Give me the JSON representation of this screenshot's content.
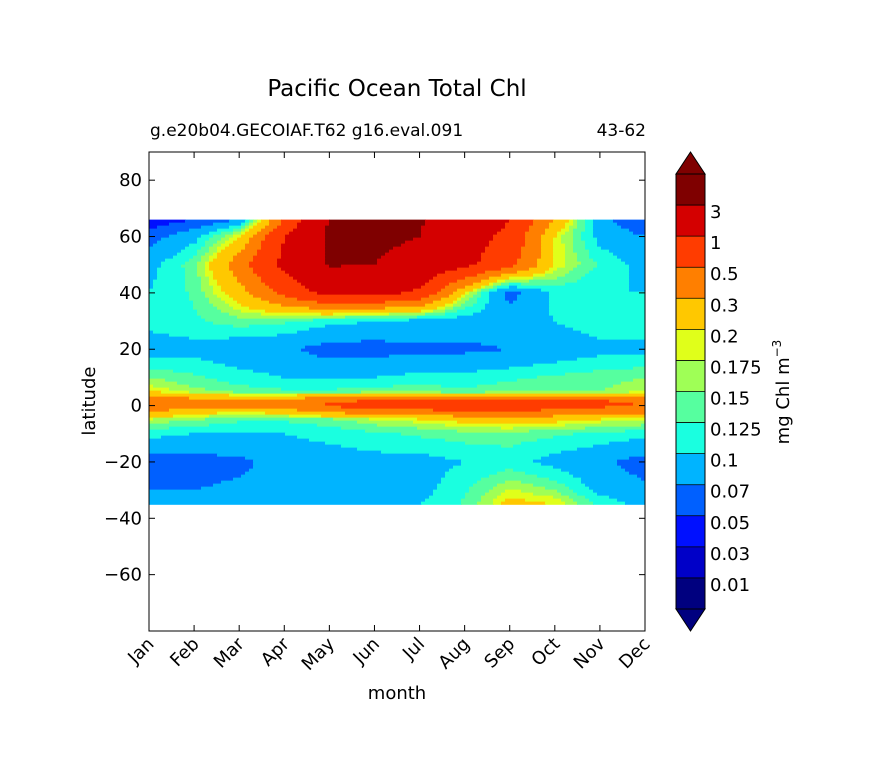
{
  "chart_data": {
    "type": "contourf",
    "title": "Pacific Ocean Total Chl",
    "subtitle_left": "g.e20b04.GECOIAF.T62 g16.eval.091",
    "subtitle_right": "43-62",
    "xlabel": "month",
    "ylabel": "latitude",
    "x_ticklabels": [
      "Jan",
      "Feb",
      "Mar",
      "Apr",
      "May",
      "Jun",
      "Jul",
      "Aug",
      "Sep",
      "Oct",
      "Nov",
      "Dec"
    ],
    "y_ticks": [
      80,
      60,
      40,
      20,
      0,
      -20,
      -40,
      -60
    ],
    "y_ticklabels": [
      "80",
      "60",
      "40",
      "20",
      "0",
      "−20",
      "−40",
      "−60"
    ],
    "ylim": [
      -80,
      90
    ],
    "xlim": [
      0,
      11
    ],
    "data_lat_range": [
      -35,
      66
    ],
    "colorbar": {
      "label": "mg Chl m",
      "label_exponent": "−3",
      "extend": "both",
      "levels": [
        "0.01",
        "0.03",
        "0.05",
        "0.07",
        "0.1",
        "0.125",
        "0.15",
        "0.175",
        "0.2",
        "0.3",
        "0.5",
        "1",
        "3"
      ],
      "colors": [
        "#00007f",
        "#0000c8",
        "#0010ff",
        "#0060ff",
        "#00b4ff",
        "#1affe0",
        "#56ff9f",
        "#9fff56",
        "#e0ff1a",
        "#ffc800",
        "#ff7f00",
        "#ff3c00",
        "#d40000",
        "#7f0000"
      ],
      "under_color": "#00007f",
      "over_color": "#7f0000"
    },
    "field_lat": [
      66,
      60,
      50,
      40,
      30,
      20,
      10,
      5,
      2,
      0,
      -2,
      -5,
      -10,
      -20,
      -30,
      -35
    ],
    "field_values": [
      [
        0.04,
        0.05,
        0.07,
        0.5,
        3.2,
        3.5,
        3.2,
        2.0,
        1.0,
        0.3,
        0.08,
        0.05
      ],
      [
        0.06,
        0.09,
        0.2,
        1.0,
        3.5,
        4.0,
        3.0,
        1.5,
        0.8,
        0.2,
        0.09,
        0.07
      ],
      [
        0.09,
        0.14,
        0.4,
        1.2,
        3.2,
        3.0,
        1.8,
        1.2,
        0.6,
        0.2,
        0.12,
        0.09
      ],
      [
        0.1,
        0.13,
        0.25,
        0.6,
        1.3,
        1.2,
        0.9,
        0.2,
        0.06,
        0.11,
        0.1,
        0.1
      ],
      [
        0.11,
        0.12,
        0.14,
        0.13,
        0.11,
        0.1,
        0.09,
        0.085,
        0.09,
        0.1,
        0.12,
        0.12
      ],
      [
        0.085,
        0.09,
        0.08,
        0.075,
        0.06,
        0.06,
        0.065,
        0.065,
        0.07,
        0.08,
        0.09,
        0.09
      ],
      [
        0.15,
        0.13,
        0.11,
        0.1,
        0.095,
        0.1,
        0.11,
        0.11,
        0.12,
        0.13,
        0.14,
        0.15
      ],
      [
        0.2,
        0.16,
        0.14,
        0.13,
        0.13,
        0.14,
        0.14,
        0.13,
        0.14,
        0.14,
        0.15,
        0.17
      ],
      [
        0.4,
        0.35,
        0.3,
        0.32,
        0.45,
        0.5,
        0.55,
        0.6,
        0.6,
        0.55,
        0.5,
        0.45
      ],
      [
        0.45,
        0.4,
        0.35,
        0.4,
        0.55,
        0.6,
        0.65,
        0.7,
        0.7,
        0.65,
        0.55,
        0.5
      ],
      [
        0.3,
        0.25,
        0.2,
        0.25,
        0.35,
        0.4,
        0.45,
        0.5,
        0.5,
        0.45,
        0.4,
        0.35
      ],
      [
        0.17,
        0.15,
        0.13,
        0.13,
        0.14,
        0.17,
        0.19,
        0.22,
        0.25,
        0.22,
        0.19,
        0.18
      ],
      [
        0.11,
        0.1,
        0.1,
        0.1,
        0.11,
        0.12,
        0.13,
        0.14,
        0.14,
        0.13,
        0.12,
        0.11
      ],
      [
        0.06,
        0.06,
        0.065,
        0.08,
        0.085,
        0.09,
        0.09,
        0.1,
        0.11,
        0.09,
        0.075,
        0.06
      ],
      [
        0.07,
        0.07,
        0.075,
        0.08,
        0.09,
        0.09,
        0.09,
        0.12,
        0.18,
        0.15,
        0.09,
        0.075
      ],
      [
        0.08,
        0.08,
        0.09,
        0.09,
        0.09,
        0.095,
        0.1,
        0.13,
        0.22,
        0.2,
        0.12,
        0.09
      ]
    ]
  }
}
